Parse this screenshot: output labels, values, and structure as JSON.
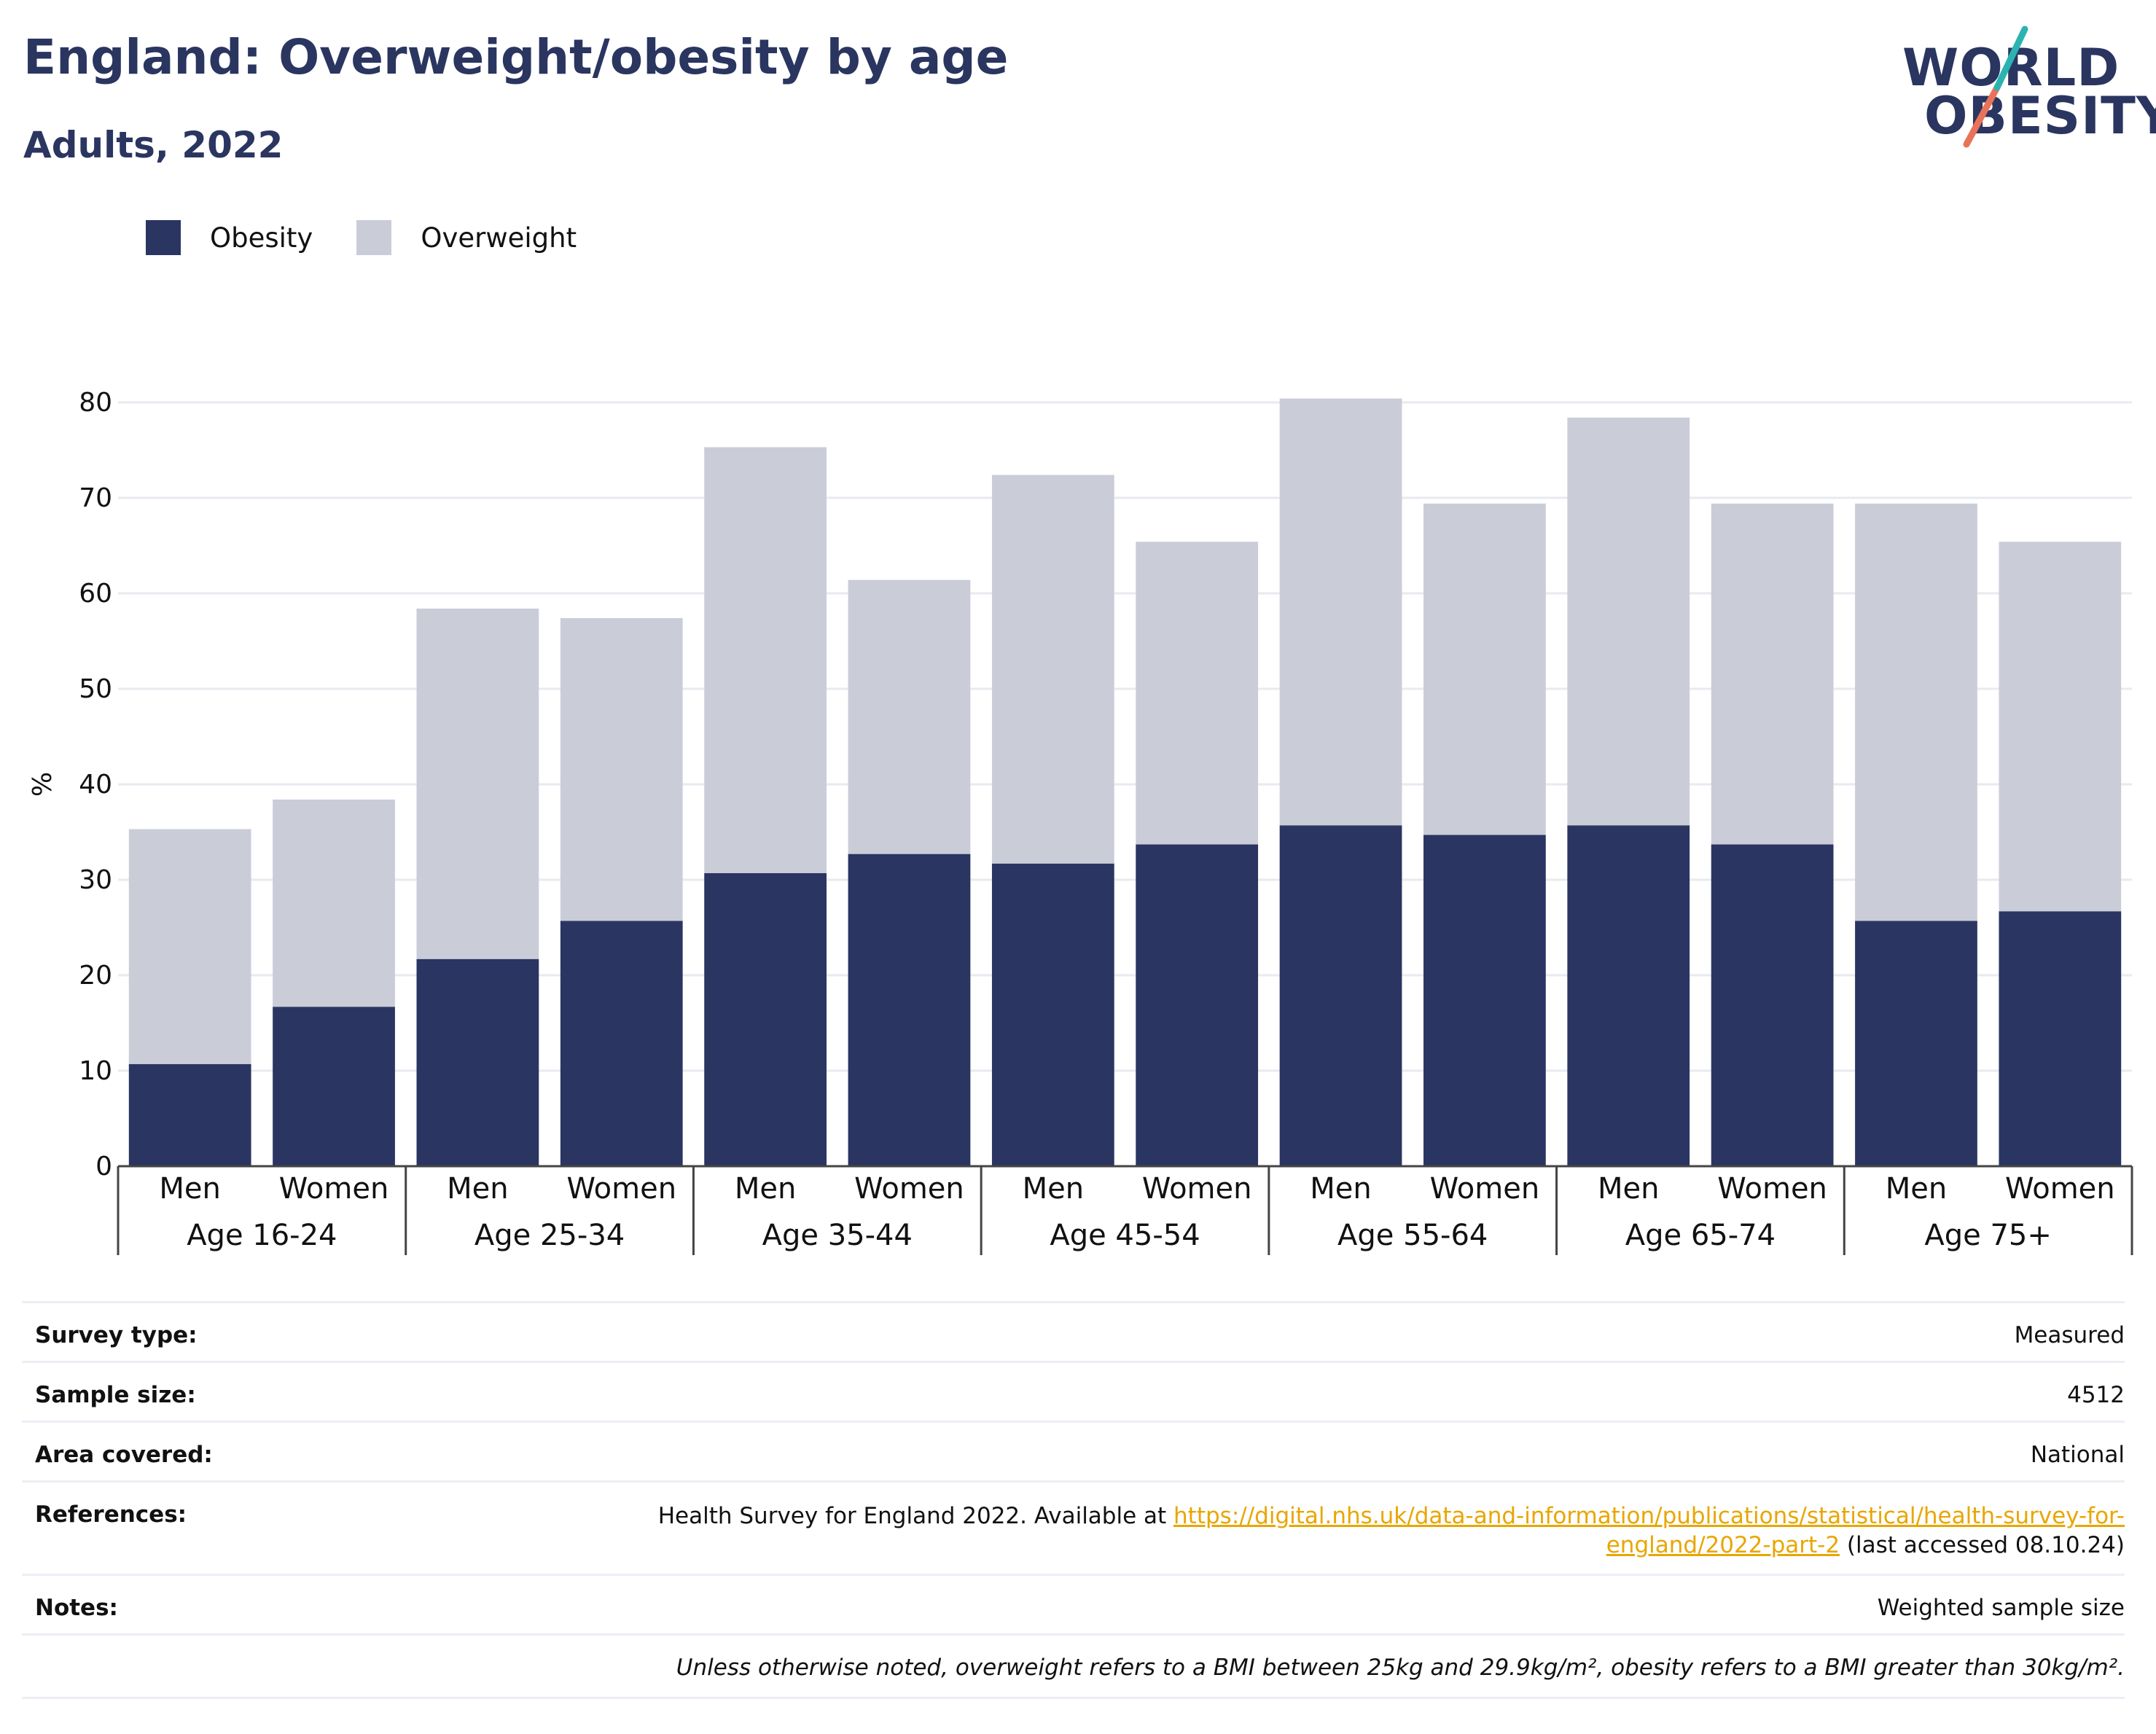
{
  "title": "England: Overweight/obesity by age",
  "subtitle": "Adults, 2022",
  "logo": {
    "line1": "WORLD",
    "line2": "OBESITY"
  },
  "legend": [
    {
      "label": "Obesity",
      "color": "#2a3562"
    },
    {
      "label": "Overweight",
      "color": "#cacdd8"
    }
  ],
  "chart_data": {
    "type": "bar",
    "stacked": true,
    "ylabel": "%",
    "ylim": [
      0,
      80
    ],
    "yticks": [
      0,
      10,
      20,
      30,
      40,
      50,
      60,
      70,
      80
    ],
    "grid": true,
    "legend_position": "top-left",
    "groups": [
      "Age 16-24",
      "Age 25-34",
      "Age 35-44",
      "Age 45-54",
      "Age 55-64",
      "Age 65-74",
      "Age 75+"
    ],
    "subcategories": [
      "Men",
      "Women"
    ],
    "series": [
      {
        "name": "Obesity",
        "color": "#2a3562",
        "values": [
          10.7,
          16.7,
          21.7,
          25.7,
          30.7,
          32.7,
          31.7,
          33.7,
          35.7,
          34.7,
          35.7,
          33.7,
          25.7,
          26.7
        ]
      },
      {
        "name": "Overweight",
        "color": "#cacdd8",
        "values": [
          24.6,
          21.7,
          36.7,
          31.7,
          44.6,
          28.7,
          40.7,
          31.7,
          44.7,
          34.7,
          42.7,
          35.7,
          43.7,
          38.7
        ]
      }
    ]
  },
  "meta": {
    "survey_type": {
      "label": "Survey type:",
      "value": "Measured"
    },
    "sample_size": {
      "label": "Sample size:",
      "value": "4512"
    },
    "area_covered": {
      "label": "Area covered:",
      "value": "National"
    },
    "references": {
      "label": "References:",
      "text_before": "Health Survey for England 2022. Available at ",
      "link_line1": "https://digital.nhs.uk/data-and-information/publications/statistical/health-survey-for-",
      "link_line2": "england/2022-part-2",
      "text_after": " (last accessed 08.10.24)"
    },
    "notes": {
      "label": "Notes:",
      "value": "Weighted sample size"
    },
    "footnote": "Unless otherwise noted, overweight refers to a BMI between 25kg and 29.9kg/m², obesity refers to a BMI greater than 30kg/m²."
  }
}
